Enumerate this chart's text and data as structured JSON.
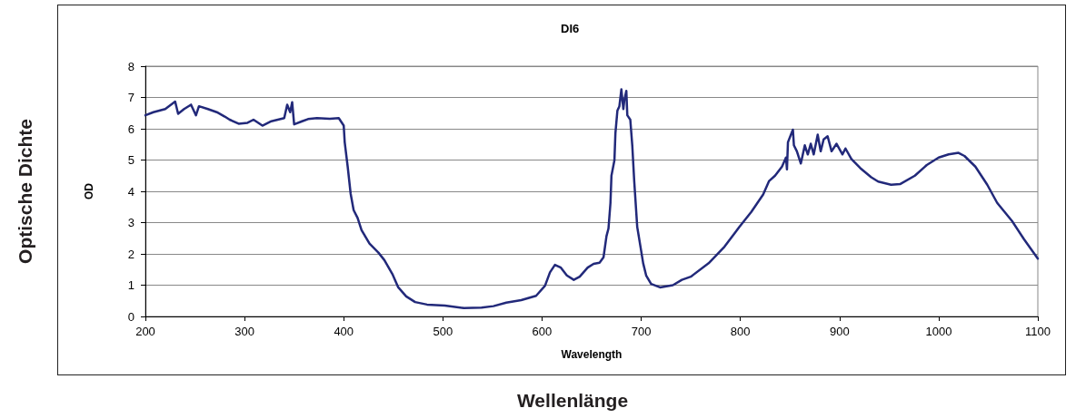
{
  "chart_data": {
    "type": "line",
    "title": "DI6",
    "xlabel": "Wavelength",
    "ylabel": "OD",
    "annotations": [
      "Optische Dichte",
      "Wellenlänge"
    ],
    "x": [
      200,
      208,
      220,
      230,
      233,
      239,
      246,
      251,
      254,
      263,
      272,
      280,
      285,
      294,
      303,
      309,
      318,
      327,
      340,
      343,
      346,
      348,
      350,
      358,
      364,
      373,
      386,
      395,
      400,
      401,
      404,
      407,
      410,
      414,
      418,
      426,
      435,
      441,
      449,
      455,
      463,
      472,
      484,
      502,
      521,
      539,
      551,
      564,
      579,
      594,
      603,
      608,
      613,
      619,
      625,
      632,
      638,
      646,
      652,
      658,
      662,
      665,
      667,
      669,
      670,
      673,
      674,
      676,
      678,
      680,
      682,
      683,
      685,
      686,
      689,
      691,
      693,
      696,
      700,
      702,
      705,
      710,
      719,
      732,
      741,
      750,
      768,
      784,
      799,
      811,
      823,
      829,
      835,
      842,
      846,
      847,
      848,
      851,
      853,
      854,
      857,
      861,
      865,
      868,
      871,
      874,
      878,
      881,
      884,
      888,
      892,
      897,
      903,
      906,
      912,
      921,
      932,
      939,
      952,
      961,
      976,
      988,
      1000,
      1010,
      1020,
      1026,
      1037,
      1049,
      1059,
      1074,
      1086,
      1100
    ],
    "values": [
      6.43,
      6.53,
      6.63,
      6.87,
      6.48,
      6.63,
      6.77,
      6.43,
      6.72,
      6.63,
      6.53,
      6.39,
      6.29,
      6.16,
      6.19,
      6.29,
      6.1,
      6.24,
      6.34,
      6.77,
      6.53,
      6.85,
      6.14,
      6.24,
      6.31,
      6.34,
      6.32,
      6.34,
      6.1,
      5.57,
      4.79,
      3.92,
      3.4,
      3.15,
      2.76,
      2.33,
      2.04,
      1.8,
      1.36,
      0.93,
      0.64,
      0.46,
      0.38,
      0.35,
      0.27,
      0.28,
      0.33,
      0.44,
      0.52,
      0.66,
      0.98,
      1.41,
      1.65,
      1.56,
      1.31,
      1.17,
      1.27,
      1.56,
      1.68,
      1.72,
      1.89,
      2.57,
      2.81,
      3.63,
      4.5,
      4.99,
      5.86,
      6.58,
      6.72,
      7.26,
      6.63,
      6.92,
      7.21,
      6.43,
      6.29,
      5.47,
      4.31,
      2.86,
      2.09,
      1.7,
      1.31,
      1.04,
      0.93,
      1.0,
      1.17,
      1.27,
      1.7,
      2.23,
      2.86,
      3.34,
      3.9,
      4.33,
      4.5,
      4.79,
      5.08,
      4.7,
      5.57,
      5.81,
      5.97,
      5.47,
      5.28,
      4.89,
      5.47,
      5.18,
      5.52,
      5.18,
      5.81,
      5.28,
      5.66,
      5.76,
      5.28,
      5.52,
      5.18,
      5.37,
      5.03,
      4.74,
      4.45,
      4.31,
      4.21,
      4.23,
      4.5,
      4.84,
      5.08,
      5.18,
      5.23,
      5.13,
      4.79,
      4.21,
      3.63,
      3.05,
      2.47,
      1.85
    ],
    "color": "#22297a",
    "xlim": [
      200,
      1100
    ],
    "xticks": [
      200,
      300,
      400,
      500,
      600,
      700,
      800,
      900,
      1000,
      1100
    ],
    "ylim": [
      0,
      8
    ],
    "yticks": [
      0,
      1,
      2,
      3,
      4,
      5,
      6,
      7,
      8
    ],
    "grid": "y"
  }
}
